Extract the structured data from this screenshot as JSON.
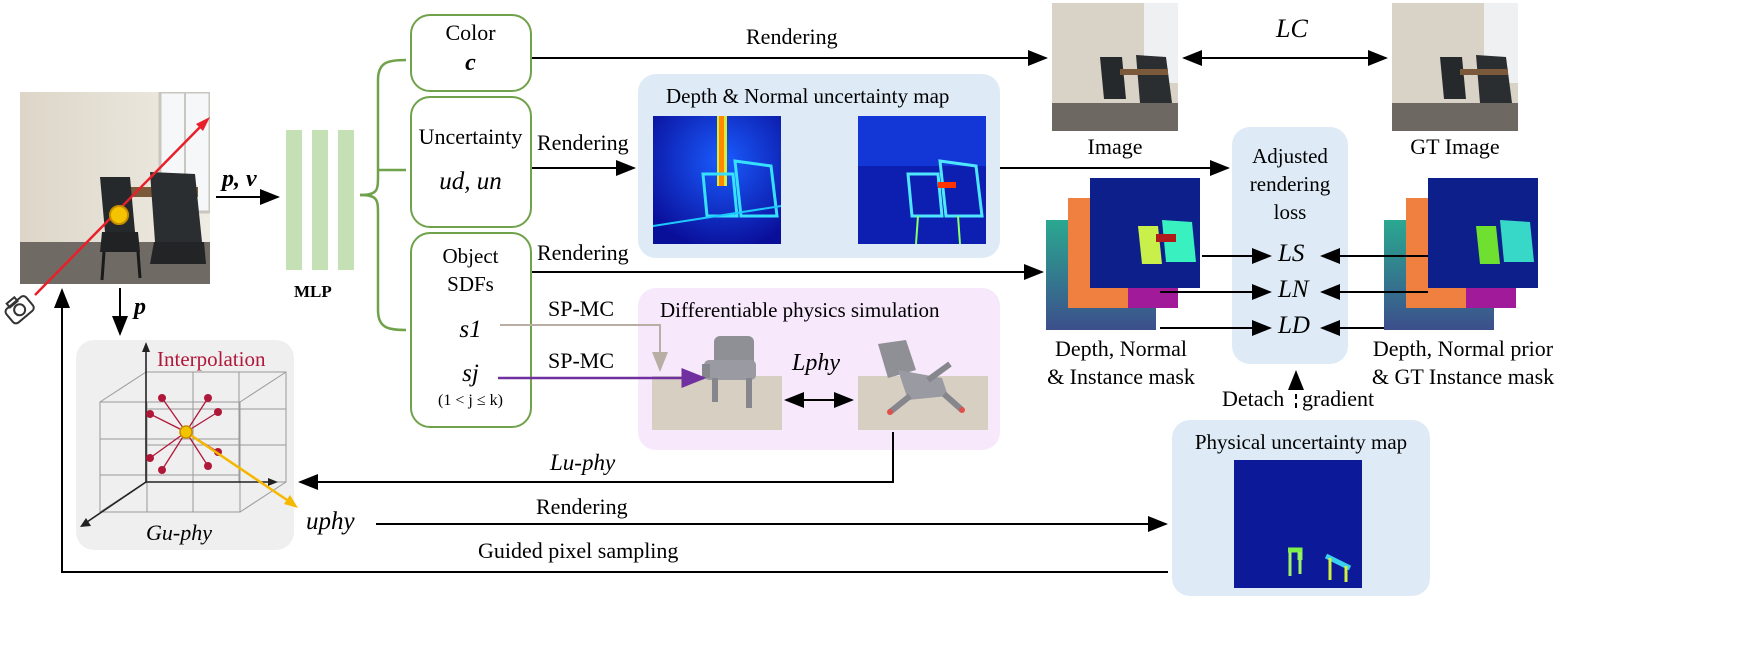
{
  "inputs": {
    "ray_label": "p, v",
    "point_label": "p",
    "mlp_label": "MLP"
  },
  "interp": {
    "title": "Interpolation",
    "grid_label": "Gu-phy",
    "uphy_label": "uphy"
  },
  "outputs": {
    "color": {
      "title": "Color",
      "symbol": "c"
    },
    "uncertainty": {
      "title": "Uncertainty",
      "symbol": "ud, un"
    },
    "sdfs": {
      "title1": "Object",
      "title2": "SDFs",
      "s1": "s1",
      "sj": "sj",
      "range": "(1 < j ≤ k)"
    }
  },
  "edges": {
    "rendering1": "Rendering",
    "rendering2": "Rendering",
    "rendering3": "Rendering",
    "rendering4": "Rendering",
    "spmc1": "SP-MC",
    "spmc2": "SP-MC",
    "lphy": "Lphy",
    "luphy": "Lu-phy",
    "guided": "Guided pixel sampling",
    "detach": "Detach",
    "gradient": "gradient"
  },
  "panels": {
    "uncertainty_map": "Depth & Normal uncertainty map",
    "physics": "Differentiable physics simulation",
    "adjusted1": "Adjusted",
    "adjusted2": "rendering",
    "adjusted3": "loss",
    "physical_unc": "Physical uncertainty map"
  },
  "images": {
    "image_caption": "Image",
    "gt_caption": "GT Image",
    "masks1": "Depth, Normal",
    "masks2": "& Instance mask",
    "prior1": "Depth, Normal prior",
    "prior2": "& GT Instance mask"
  },
  "losses": {
    "lc": "LC",
    "ls": "LS",
    "ln": "LN",
    "ld": "LD"
  },
  "colors": {
    "green_border": "#6fa24a",
    "mlp_bar": "#c5e0b4",
    "blue_panel": "#deebf6",
    "pink_panel": "#f7e8fb",
    "gray_panel": "#efefef",
    "ray_red": "#e8202a",
    "purple_arrow": "#7030a0",
    "yellow_arrow": "#f5b800",
    "node_red": "#b0183a"
  }
}
